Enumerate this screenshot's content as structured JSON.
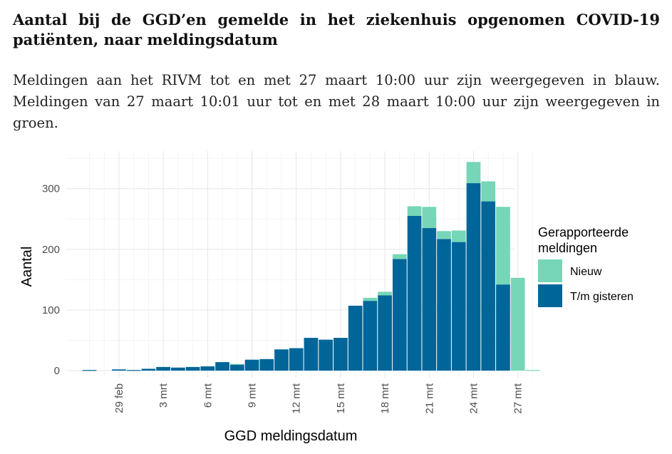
{
  "title": "Aantal bij de GGD’en gemelde in het ziekenhuis opgenomen COVID-19 patiënten, naar meldingsdatum",
  "description": "Meldingen aan het RIVM tot en met 27 maart 10:00 uur zijn weergegeven in blauw. Meldingen van 27 maart 10:01 uur tot en met 28 maart 10:00 uur zijn weergegeven in groen.",
  "chart_data": {
    "type": "bar",
    "stacked": true,
    "xlabel": "GGD meldingsdatum",
    "ylabel": "Aantal",
    "ylim": [
      0,
      350
    ],
    "y_ticks": [
      0,
      100,
      200,
      300
    ],
    "x_tick_labels": [
      "29 feb",
      "3 mrt",
      "6 mrt",
      "9 mrt",
      "12 mrt",
      "15 mrt",
      "18 mrt",
      "21 mrt",
      "24 mrt",
      "27 mrt"
    ],
    "categories": [
      "27 feb",
      "28 feb",
      "29 feb",
      "1 mrt",
      "2 mrt",
      "3 mrt",
      "4 mrt",
      "5 mrt",
      "6 mrt",
      "7 mrt",
      "8 mrt",
      "9 mrt",
      "10 mrt",
      "11 mrt",
      "12 mrt",
      "13 mrt",
      "14 mrt",
      "15 mrt",
      "16 mrt",
      "17 mrt",
      "18 mrt",
      "19 mrt",
      "20 mrt",
      "21 mrt",
      "22 mrt",
      "23 mrt",
      "24 mrt",
      "25 mrt",
      "26 mrt",
      "27 mrt",
      "28 mrt"
    ],
    "series": [
      {
        "name": "T/m gisteren",
        "color": "#006699",
        "values": [
          1,
          0,
          2,
          1,
          3,
          6,
          5,
          6,
          7,
          14,
          10,
          18,
          19,
          35,
          37,
          54,
          51,
          54,
          107,
          115,
          124,
          184,
          255,
          235,
          217,
          212,
          309,
          279,
          142,
          0,
          0
        ]
      },
      {
        "name": "Nieuw",
        "color": "#76d6b7",
        "values": [
          0,
          0,
          0,
          0,
          0,
          0,
          0,
          0,
          0,
          0,
          1,
          0,
          0,
          0,
          0,
          0,
          0,
          0,
          0,
          5,
          6,
          8,
          16,
          35,
          13,
          19,
          35,
          33,
          128,
          153,
          1
        ]
      }
    ],
    "legend": {
      "title": "Gerapporteerde meldingen",
      "position": "right",
      "entries": [
        "Nieuw",
        "T/m gisteren"
      ]
    },
    "grid": true
  }
}
